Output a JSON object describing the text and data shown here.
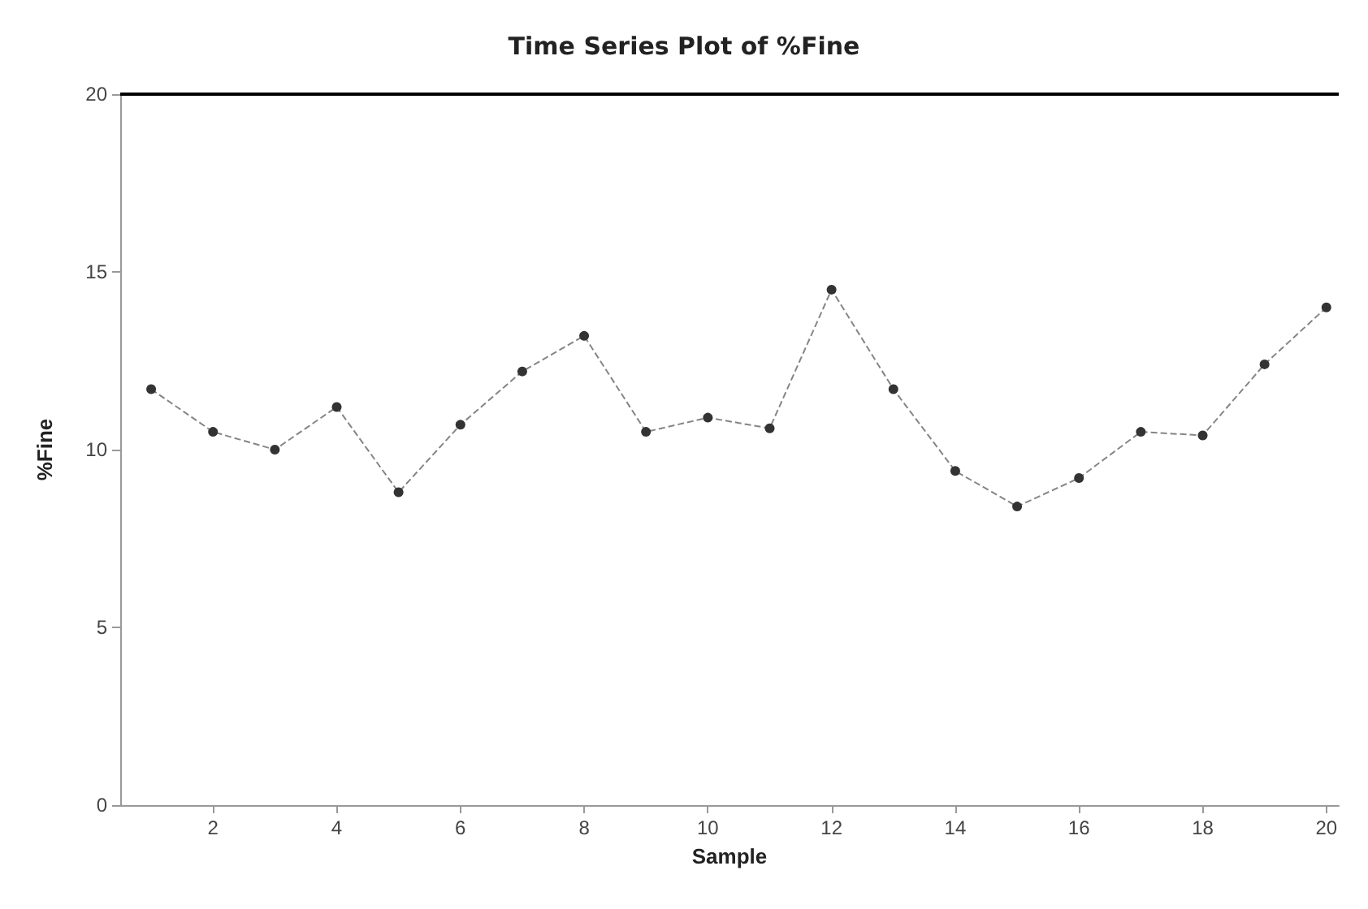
{
  "chart_data": {
    "type": "line",
    "title": "Time Series Plot of %Fine",
    "xlabel": "Sample",
    "ylabel": "%Fine",
    "x": [
      1,
      2,
      3,
      4,
      5,
      6,
      7,
      8,
      9,
      10,
      11,
      12,
      13,
      14,
      15,
      16,
      17,
      18,
      19,
      20
    ],
    "series": [
      {
        "color": "#333333",
        "values": [
          11.7,
          10.5,
          10.0,
          11.2,
          8.8,
          10.7,
          12.2,
          13.2,
          10.5,
          10.9,
          10.6,
          14.5,
          11.7,
          9.4,
          8.4,
          9.2,
          10.5,
          10.4,
          12.4,
          14.0
        ]
      }
    ],
    "xlim": [
      0.5,
      20.2
    ],
    "xticks": [
      2,
      4,
      6,
      8,
      10,
      12,
      14,
      16,
      18,
      20
    ],
    "ylim": [
      0,
      20
    ],
    "yticks": [
      0,
      5,
      10,
      15,
      20
    ],
    "ref_lines": [
      {
        "axis": "y",
        "value": 20,
        "color": "#000000",
        "line_style": "solid"
      }
    ],
    "grid": false,
    "marker": "circle",
    "line_style": "dashed"
  }
}
